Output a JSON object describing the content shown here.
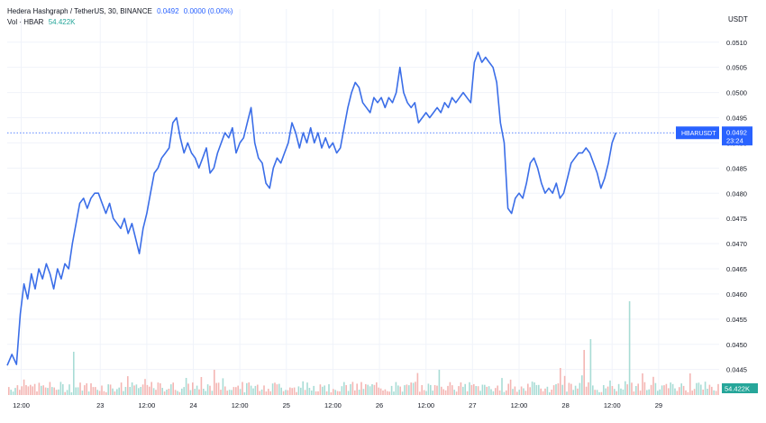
{
  "legend": {
    "symbol": "Hedera Hashgraph / TetherUS, 30, BINANCE",
    "last": "0.0492",
    "change": "0.0000 (0.00%)",
    "volume_label": "Vol · HBAR",
    "volume_value": "54.422K"
  },
  "colors": {
    "line": "#3b6ee8",
    "volume_up": "#a8dcd5",
    "volume_down": "#f4b6b3",
    "price_label": "#2962ff",
    "grid": "#f0f3fa"
  },
  "chart_data": {
    "type": "line",
    "title": "Hedera Hashgraph / TetherUS, 30, BINANCE",
    "ylabel": "USDT",
    "ylim": [
      0.0441,
      0.0513
    ],
    "y_ticks": [
      "0.0510",
      "0.0505",
      "0.0500",
      "0.0495",
      "0.0490",
      "0.0485",
      "0.0480",
      "0.0475",
      "0.0470",
      "0.0465",
      "0.0460",
      "0.0455",
      "0.0450",
      "0.0445"
    ],
    "x_tick_labels": [
      {
        "label": "12:00",
        "x": 0.15
      },
      {
        "label": "23",
        "x": 1
      },
      {
        "label": "12:00",
        "x": 1.5
      },
      {
        "label": "24",
        "x": 2
      },
      {
        "label": "12:00",
        "x": 2.5
      },
      {
        "label": "25",
        "x": 3
      },
      {
        "label": "12:00",
        "x": 3.5
      },
      {
        "label": "26",
        "x": 4
      },
      {
        "label": "12:00",
        "x": 4.5
      },
      {
        "label": "27",
        "x": 5
      },
      {
        "label": "12:00",
        "x": 5.5
      },
      {
        "label": "28",
        "x": 6
      },
      {
        "label": "12:00",
        "x": 6.5
      },
      {
        "label": "29",
        "x": 7
      }
    ],
    "xlim": [
      0,
      7.65
    ],
    "grid": true,
    "price_line": 0.0492,
    "price_label": "HBARUSDT",
    "price_value": "0.0492",
    "countdown": "23:24",
    "volume_value": "54.422K",
    "series": [
      {
        "points": [
          [
            0.0,
            0.04458
          ],
          [
            0.05,
            0.0448
          ],
          [
            0.1,
            0.0446
          ],
          [
            0.14,
            0.0456
          ],
          [
            0.18,
            0.0462
          ],
          [
            0.22,
            0.0459
          ],
          [
            0.26,
            0.0464
          ],
          [
            0.3,
            0.0461
          ],
          [
            0.34,
            0.0465
          ],
          [
            0.38,
            0.0463
          ],
          [
            0.42,
            0.0466
          ],
          [
            0.46,
            0.0464
          ],
          [
            0.5,
            0.0461
          ],
          [
            0.54,
            0.0465
          ],
          [
            0.58,
            0.0463
          ],
          [
            0.62,
            0.0466
          ],
          [
            0.66,
            0.0465
          ],
          [
            0.7,
            0.047
          ],
          [
            0.74,
            0.0474
          ],
          [
            0.78,
            0.0478
          ],
          [
            0.82,
            0.0479
          ],
          [
            0.86,
            0.0477
          ],
          [
            0.9,
            0.0479
          ],
          [
            0.94,
            0.048
          ],
          [
            0.98,
            0.048
          ],
          [
            1.02,
            0.0478
          ],
          [
            1.06,
            0.0476
          ],
          [
            1.1,
            0.0478
          ],
          [
            1.14,
            0.0475
          ],
          [
            1.18,
            0.0474
          ],
          [
            1.22,
            0.0473
          ],
          [
            1.26,
            0.0475
          ],
          [
            1.3,
            0.0472
          ],
          [
            1.34,
            0.0474
          ],
          [
            1.38,
            0.0471
          ],
          [
            1.42,
            0.0468
          ],
          [
            1.46,
            0.0473
          ],
          [
            1.5,
            0.0476
          ],
          [
            1.54,
            0.048
          ],
          [
            1.58,
            0.0484
          ],
          [
            1.62,
            0.0485
          ],
          [
            1.66,
            0.0487
          ],
          [
            1.7,
            0.0488
          ],
          [
            1.74,
            0.0489
          ],
          [
            1.78,
            0.0494
          ],
          [
            1.82,
            0.0495
          ],
          [
            1.86,
            0.0491
          ],
          [
            1.9,
            0.0488
          ],
          [
            1.94,
            0.049
          ],
          [
            1.98,
            0.0488
          ],
          [
            2.02,
            0.0487
          ],
          [
            2.06,
            0.0485
          ],
          [
            2.1,
            0.0487
          ],
          [
            2.14,
            0.0489
          ],
          [
            2.18,
            0.0484
          ],
          [
            2.22,
            0.0485
          ],
          [
            2.26,
            0.0488
          ],
          [
            2.3,
            0.049
          ],
          [
            2.34,
            0.0492
          ],
          [
            2.38,
            0.0491
          ],
          [
            2.42,
            0.0493
          ],
          [
            2.46,
            0.0488
          ],
          [
            2.5,
            0.049
          ],
          [
            2.54,
            0.0491
          ],
          [
            2.58,
            0.0494
          ],
          [
            2.62,
            0.0497
          ],
          [
            2.66,
            0.049
          ],
          [
            2.7,
            0.0487
          ],
          [
            2.74,
            0.0486
          ],
          [
            2.78,
            0.0482
          ],
          [
            2.82,
            0.0481
          ],
          [
            2.86,
            0.0485
          ],
          [
            2.9,
            0.0487
          ],
          [
            2.94,
            0.0486
          ],
          [
            2.98,
            0.0488
          ],
          [
            3.02,
            0.049
          ],
          [
            3.06,
            0.0494
          ],
          [
            3.1,
            0.0492
          ],
          [
            3.14,
            0.0489
          ],
          [
            3.18,
            0.0492
          ],
          [
            3.22,
            0.049
          ],
          [
            3.26,
            0.0493
          ],
          [
            3.3,
            0.049
          ],
          [
            3.34,
            0.0492
          ],
          [
            3.38,
            0.0489
          ],
          [
            3.42,
            0.0491
          ],
          [
            3.46,
            0.0489
          ],
          [
            3.5,
            0.049
          ],
          [
            3.54,
            0.0488
          ],
          [
            3.58,
            0.0489
          ],
          [
            3.62,
            0.0493
          ],
          [
            3.66,
            0.0497
          ],
          [
            3.7,
            0.05
          ],
          [
            3.74,
            0.0502
          ],
          [
            3.78,
            0.0501
          ],
          [
            3.82,
            0.0498
          ],
          [
            3.86,
            0.0497
          ],
          [
            3.9,
            0.0496
          ],
          [
            3.94,
            0.0499
          ],
          [
            3.98,
            0.0498
          ],
          [
            4.02,
            0.0499
          ],
          [
            4.06,
            0.0497
          ],
          [
            4.1,
            0.0499
          ],
          [
            4.14,
            0.0498
          ],
          [
            4.18,
            0.05
          ],
          [
            4.22,
            0.0505
          ],
          [
            4.26,
            0.05
          ],
          [
            4.3,
            0.0498
          ],
          [
            4.34,
            0.0497
          ],
          [
            4.38,
            0.0498
          ],
          [
            4.42,
            0.0494
          ],
          [
            4.46,
            0.0495
          ],
          [
            4.5,
            0.0496
          ],
          [
            4.54,
            0.0495
          ],
          [
            4.58,
            0.0496
          ],
          [
            4.62,
            0.0497
          ],
          [
            4.66,
            0.0496
          ],
          [
            4.7,
            0.0498
          ],
          [
            4.74,
            0.0497
          ],
          [
            4.78,
            0.0499
          ],
          [
            4.82,
            0.0498
          ],
          [
            4.86,
            0.0499
          ],
          [
            4.9,
            0.05
          ],
          [
            4.94,
            0.0499
          ],
          [
            4.98,
            0.0498
          ],
          [
            5.02,
            0.0506
          ],
          [
            5.06,
            0.0508
          ],
          [
            5.1,
            0.0506
          ],
          [
            5.14,
            0.0507
          ],
          [
            5.18,
            0.0506
          ],
          [
            5.22,
            0.0505
          ],
          [
            5.26,
            0.0502
          ],
          [
            5.3,
            0.0494
          ],
          [
            5.34,
            0.049
          ],
          [
            5.38,
            0.0477
          ],
          [
            5.42,
            0.0476
          ],
          [
            5.46,
            0.0479
          ],
          [
            5.5,
            0.048
          ],
          [
            5.54,
            0.0479
          ],
          [
            5.58,
            0.0482
          ],
          [
            5.62,
            0.0486
          ],
          [
            5.66,
            0.0487
          ],
          [
            5.7,
            0.0485
          ],
          [
            5.74,
            0.0482
          ],
          [
            5.78,
            0.048
          ],
          [
            5.82,
            0.0481
          ],
          [
            5.86,
            0.048
          ],
          [
            5.9,
            0.0482
          ],
          [
            5.94,
            0.0479
          ],
          [
            5.98,
            0.048
          ],
          [
            6.02,
            0.0483
          ],
          [
            6.06,
            0.0486
          ],
          [
            6.1,
            0.0487
          ],
          [
            6.14,
            0.0488
          ],
          [
            6.18,
            0.0488
          ],
          [
            6.22,
            0.0489
          ],
          [
            6.26,
            0.0488
          ],
          [
            6.3,
            0.0486
          ],
          [
            6.34,
            0.0484
          ],
          [
            6.38,
            0.0481
          ],
          [
            6.42,
            0.0483
          ],
          [
            6.46,
            0.0486
          ],
          [
            6.5,
            0.049
          ],
          [
            6.54,
            0.0492
          ]
        ]
      }
    ]
  }
}
